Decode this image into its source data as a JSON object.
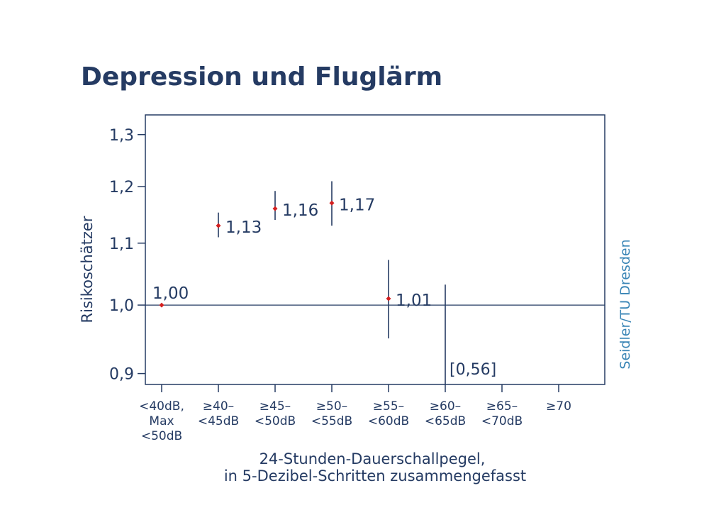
{
  "title": "Depression und Fluglärm",
  "credit": "Seidler/TU Dresden",
  "colors": {
    "navy": "#253b63",
    "marker": "#d42020",
    "credit": "#3b86b6"
  },
  "chart_data": {
    "type": "scatter",
    "title": "Depression und Fluglärm",
    "ylabel": "Risikoschätzer",
    "xlabel_lines": [
      "24-Stunden-Dauerschallpegel,",
      "in 5-Dezibel-Schritten zusammengefasst"
    ],
    "ylim": [
      0.885,
      1.34
    ],
    "y_scale": "log",
    "yticks": [
      {
        "value": 0.9,
        "label": "0,9"
      },
      {
        "value": 1.0,
        "label": "1,0"
      },
      {
        "value": 1.1,
        "label": "1,1"
      },
      {
        "value": 1.2,
        "label": "1,2"
      },
      {
        "value": 1.3,
        "label": "1,3"
      }
    ],
    "reference_line": 1.0,
    "categories": [
      {
        "lines": [
          "<40dB,",
          "Max",
          "<50dB"
        ]
      },
      {
        "lines": [
          "≥40–",
          "<45dB"
        ]
      },
      {
        "lines": [
          "≥45–",
          "<50dB"
        ]
      },
      {
        "lines": [
          "≥50–",
          "<55dB"
        ]
      },
      {
        "lines": [
          "≥55–",
          "<60dB"
        ]
      },
      {
        "lines": [
          "≥60–",
          "<65dB"
        ]
      },
      {
        "lines": [
          "≥65–",
          "<70dB"
        ]
      },
      {
        "lines": [
          "≥70"
        ]
      }
    ],
    "points": [
      {
        "category": 0,
        "estimate": 1.0,
        "label": "1,00"
      },
      {
        "category": 1,
        "estimate": 1.13,
        "ci": [
          1.11,
          1.153
        ],
        "label": "1,13"
      },
      {
        "category": 2,
        "estimate": 1.16,
        "ci": [
          1.14,
          1.192
        ],
        "label": "1,16"
      },
      {
        "category": 3,
        "estimate": 1.17,
        "ci": [
          1.13,
          1.21
        ],
        "label": "1,17"
      },
      {
        "category": 4,
        "estimate": 1.01,
        "ci": [
          0.95,
          1.072
        ],
        "label": "1,01"
      }
    ],
    "special": [
      {
        "category": 5,
        "ci_upper": 1.032,
        "note": "[0,56]"
      }
    ]
  }
}
